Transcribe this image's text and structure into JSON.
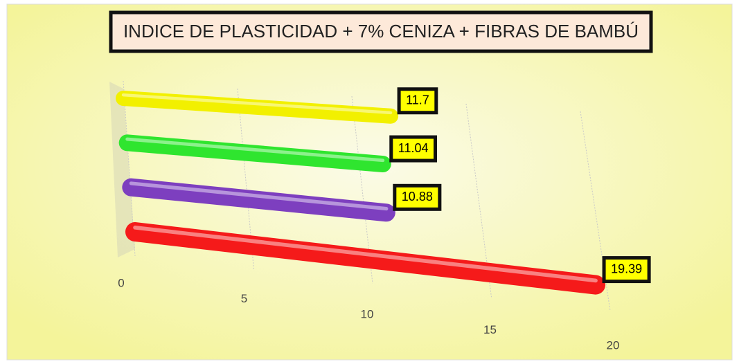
{
  "chart_data": {
    "type": "bar3d",
    "title": "INDICE DE PLASTICIDAD + 7% CENIZA + FIBRAS DE BAMBÚ",
    "values": [
      11.7,
      11.04,
      10.88,
      19.39
    ],
    "colors": [
      "#f2f000",
      "#2fe52f",
      "#7d3fbf",
      "#f51a1a"
    ],
    "xlim": [
      0,
      20
    ],
    "xticks": [
      0,
      5,
      10,
      15,
      20
    ],
    "grid": true
  }
}
